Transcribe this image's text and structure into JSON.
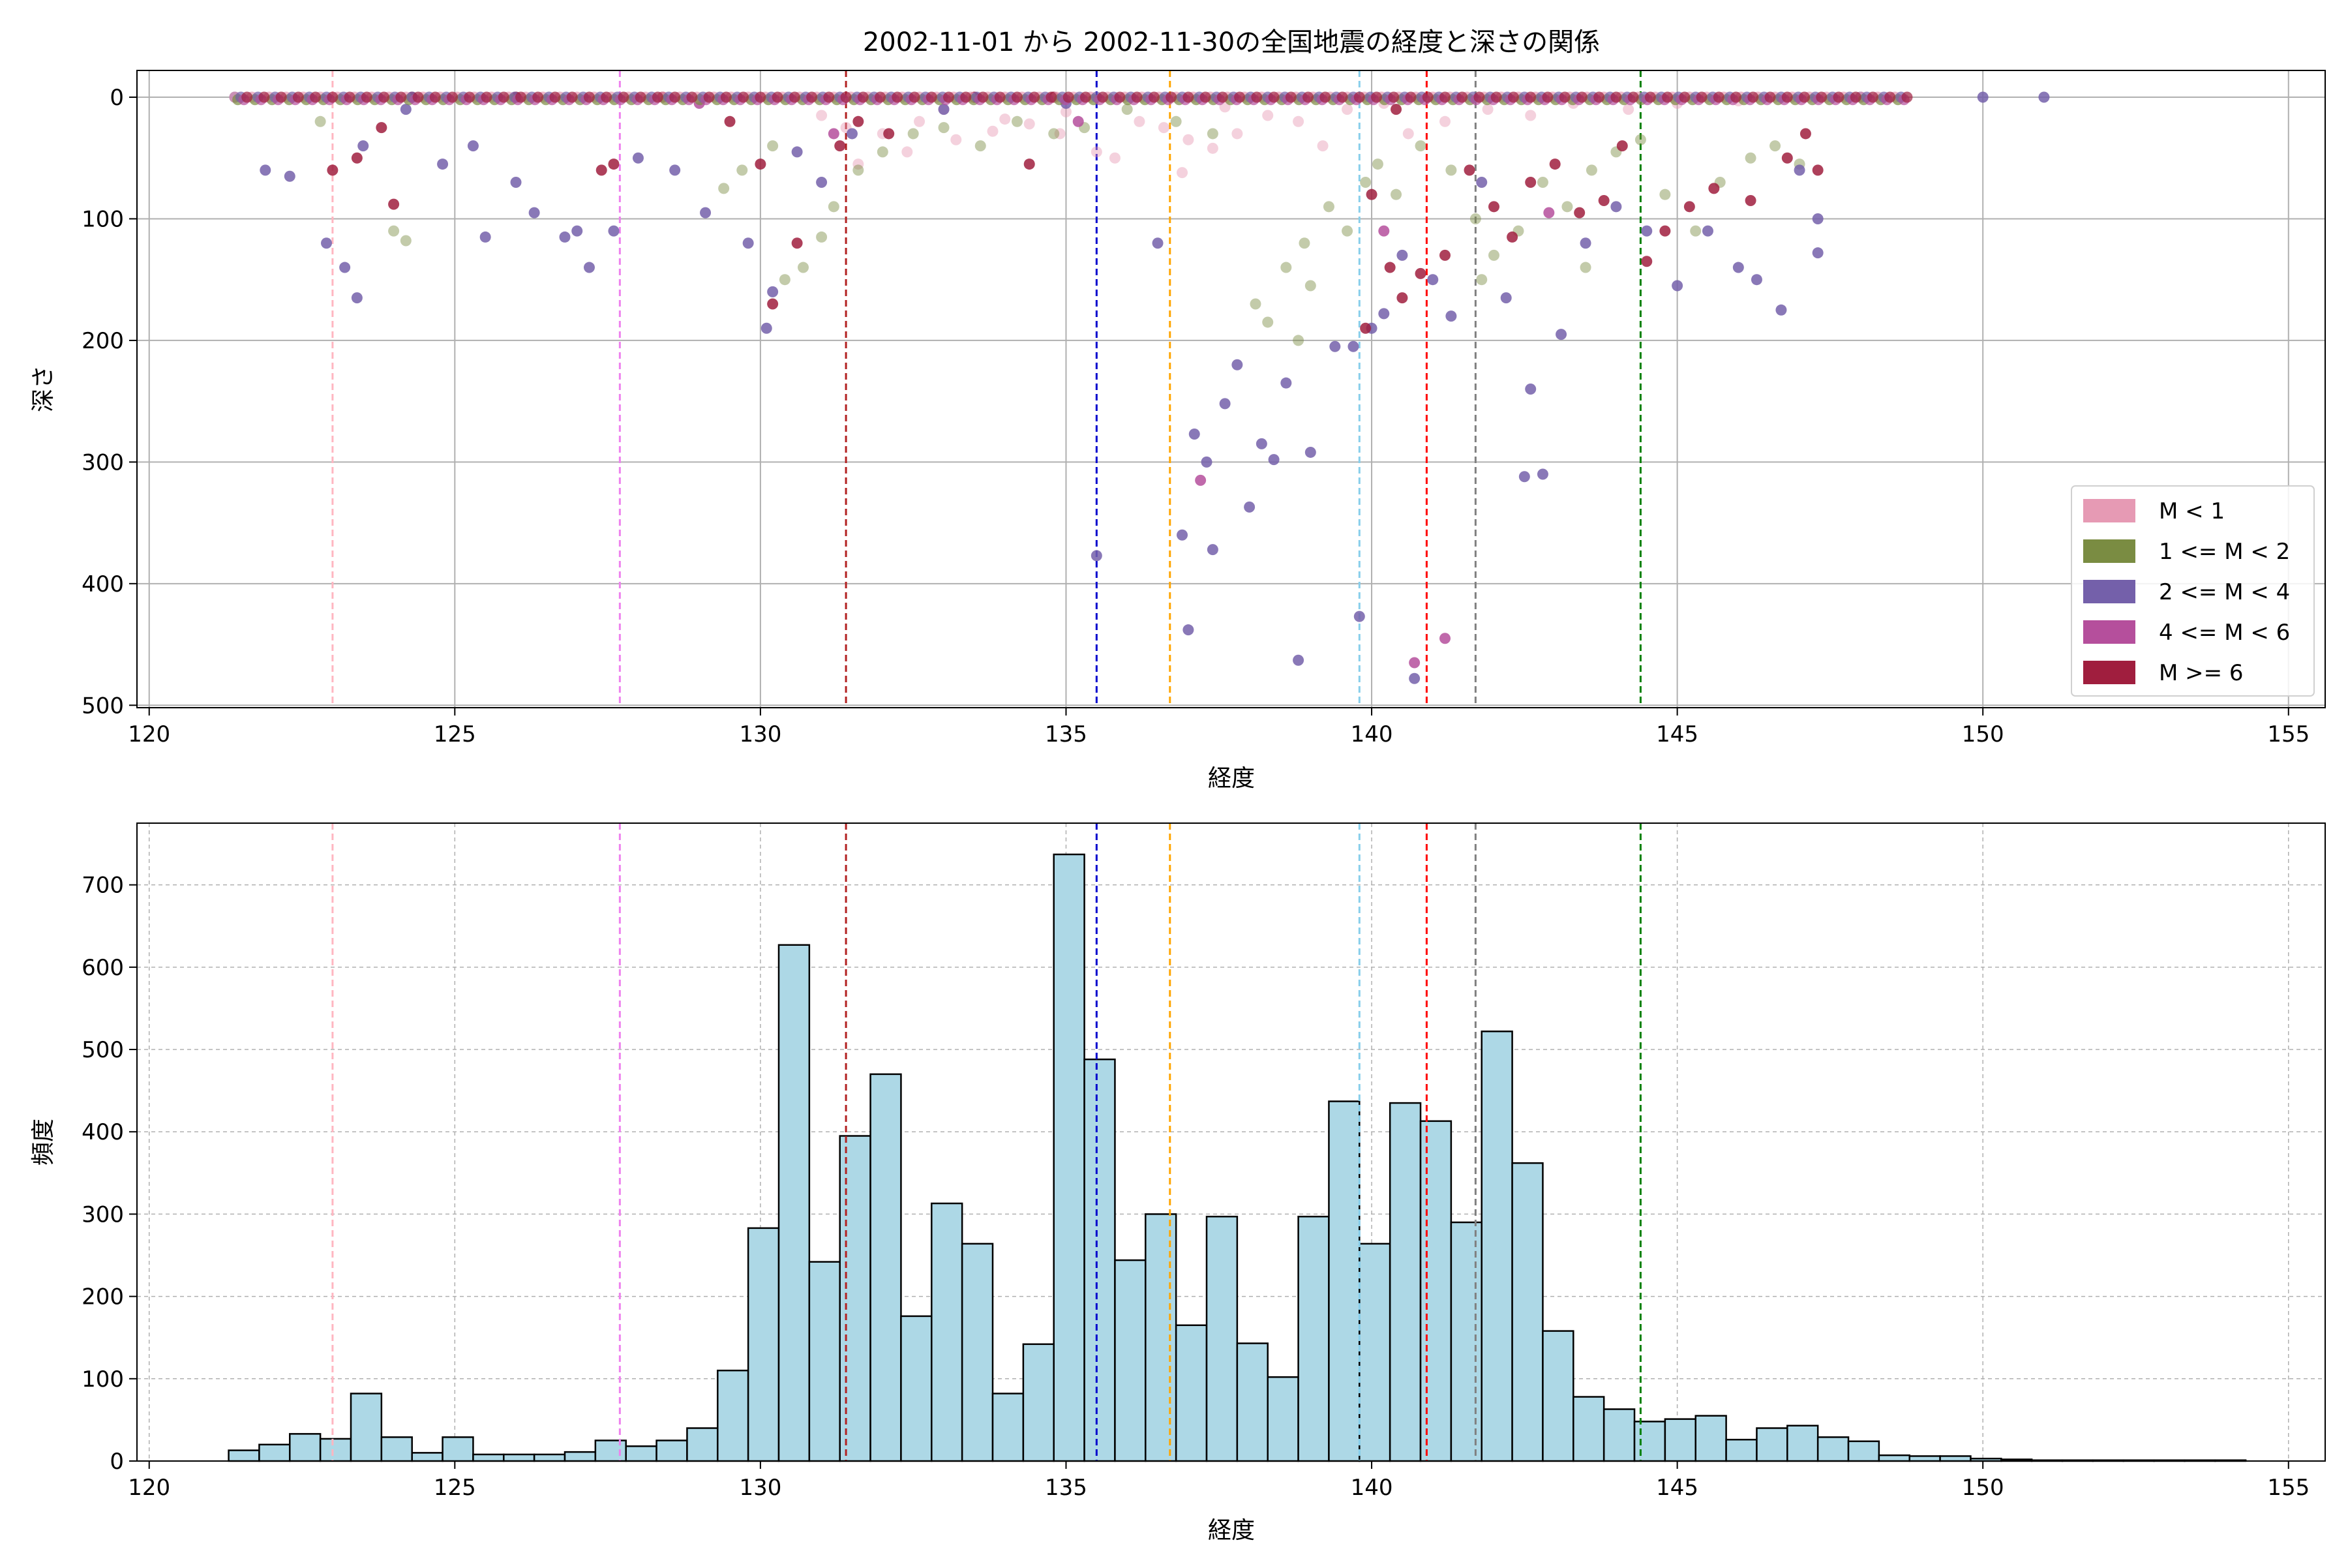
{
  "title": "2002-11-01 から 2002-11-30の全国地震の経度と深さの関係",
  "chart_data": [
    {
      "type": "scatter",
      "xlabel": "経度",
      "ylabel": "深さ",
      "xlim": [
        119.8,
        155.6
      ],
      "ylim": [
        502,
        -22
      ],
      "y_inverted": true,
      "xticks": [
        120,
        125,
        130,
        135,
        140,
        145,
        150,
        155
      ],
      "yticks": [
        0,
        100,
        200,
        300,
        400,
        500
      ],
      "grid": true,
      "legend_position": "lower-right",
      "series": [
        {
          "name": "M < 1",
          "color": "#e69ab4",
          "points": [
            [
              131.4,
              25
            ],
            [
              132.0,
              30
            ],
            [
              132.6,
              20
            ],
            [
              133.2,
              35
            ],
            [
              133.8,
              28
            ],
            [
              134.4,
              22
            ],
            [
              134.9,
              30
            ],
            [
              135.5,
              45
            ],
            [
              135.8,
              50
            ],
            [
              136.2,
              20
            ],
            [
              136.6,
              25
            ],
            [
              137.0,
              35
            ],
            [
              137.4,
              42
            ],
            [
              137.8,
              30
            ],
            [
              138.3,
              15
            ],
            [
              138.8,
              20
            ],
            [
              139.2,
              40
            ],
            [
              139.6,
              10
            ],
            [
              140.2,
              5
            ],
            [
              140.6,
              30
            ],
            [
              141.2,
              20
            ],
            [
              141.9,
              10
            ],
            [
              142.6,
              15
            ],
            [
              143.3,
              5
            ],
            [
              144.2,
              10
            ],
            [
              145.0,
              5
            ],
            [
              146.0,
              3
            ],
            [
              131.0,
              15
            ],
            [
              133.0,
              10
            ],
            [
              135.0,
              12
            ],
            [
              136.9,
              62
            ],
            [
              131.6,
              55
            ],
            [
              132.4,
              45
            ],
            [
              134.0,
              18
            ],
            [
              137.6,
              8
            ]
          ]
        },
        {
          "name": "1 <= M < 2",
          "color": "#7a8c42",
          "points": [
            [
              122.8,
              20
            ],
            [
              124.0,
              110
            ],
            [
              124.2,
              118
            ],
            [
              129.4,
              75
            ],
            [
              129.7,
              60
            ],
            [
              130.2,
              40
            ],
            [
              130.4,
              150
            ],
            [
              130.7,
              140
            ],
            [
              131.0,
              115
            ],
            [
              131.2,
              90
            ],
            [
              131.6,
              60
            ],
            [
              132.0,
              45
            ],
            [
              132.5,
              30
            ],
            [
              133.0,
              25
            ],
            [
              133.6,
              40
            ],
            [
              134.2,
              20
            ],
            [
              134.8,
              30
            ],
            [
              135.3,
              25
            ],
            [
              136.0,
              10
            ],
            [
              136.8,
              20
            ],
            [
              137.4,
              30
            ],
            [
              138.1,
              170
            ],
            [
              138.3,
              185
            ],
            [
              138.6,
              140
            ],
            [
              138.9,
              120
            ],
            [
              139.3,
              90
            ],
            [
              139.6,
              110
            ],
            [
              139.9,
              70
            ],
            [
              140.1,
              55
            ],
            [
              140.4,
              80
            ],
            [
              140.8,
              40
            ],
            [
              141.3,
              60
            ],
            [
              141.7,
              100
            ],
            [
              142.0,
              130
            ],
            [
              142.4,
              110
            ],
            [
              142.8,
              70
            ],
            [
              143.2,
              90
            ],
            [
              143.6,
              60
            ],
            [
              144.0,
              45
            ],
            [
              144.4,
              35
            ],
            [
              144.8,
              80
            ],
            [
              145.3,
              110
            ],
            [
              145.7,
              70
            ],
            [
              146.2,
              50
            ],
            [
              146.6,
              40
            ],
            [
              147.0,
              55
            ],
            [
              141.8,
              150
            ],
            [
              143.5,
              140
            ],
            [
              139.0,
              155
            ],
            [
              138.8,
              200
            ]
          ]
        },
        {
          "name": "2 <= M < 4",
          "color": "#7460aa",
          "points": [
            [
              121.4,
              0
            ],
            [
              121.9,
              60
            ],
            [
              122.3,
              65
            ],
            [
              122.9,
              120
            ],
            [
              123.2,
              140
            ],
            [
              123.4,
              165
            ],
            [
              123.5,
              40
            ],
            [
              124.2,
              10
            ],
            [
              124.8,
              55
            ],
            [
              125.3,
              40
            ],
            [
              125.5,
              115
            ],
            [
              126.0,
              70
            ],
            [
              126.3,
              95
            ],
            [
              126.8,
              115
            ],
            [
              127.0,
              110
            ],
            [
              127.2,
              140
            ],
            [
              127.6,
              110
            ],
            [
              128.0,
              50
            ],
            [
              128.6,
              60
            ],
            [
              129.1,
              95
            ],
            [
              129.8,
              120
            ],
            [
              130.1,
              190
            ],
            [
              130.2,
              160
            ],
            [
              130.6,
              45
            ],
            [
              131.0,
              70
            ],
            [
              131.5,
              30
            ],
            [
              133.0,
              10
            ],
            [
              135.0,
              5
            ],
            [
              135.5,
              377
            ],
            [
              136.5,
              120
            ],
            [
              136.9,
              360
            ],
            [
              137.0,
              438
            ],
            [
              137.1,
              277
            ],
            [
              137.3,
              300
            ],
            [
              137.4,
              372
            ],
            [
              137.6,
              252
            ],
            [
              137.8,
              220
            ],
            [
              138.0,
              337
            ],
            [
              138.2,
              285
            ],
            [
              138.4,
              298
            ],
            [
              138.6,
              235
            ],
            [
              138.8,
              463
            ],
            [
              139.0,
              292
            ],
            [
              139.4,
              205
            ],
            [
              139.7,
              205
            ],
            [
              139.8,
              427
            ],
            [
              140.0,
              190
            ],
            [
              140.2,
              178
            ],
            [
              140.5,
              130
            ],
            [
              140.7,
              478
            ],
            [
              141.0,
              150
            ],
            [
              141.3,
              180
            ],
            [
              141.8,
              70
            ],
            [
              142.2,
              165
            ],
            [
              142.5,
              312
            ],
            [
              142.6,
              240
            ],
            [
              142.8,
              310
            ],
            [
              143.1,
              195
            ],
            [
              143.5,
              120
            ],
            [
              144.0,
              90
            ],
            [
              144.5,
              110
            ],
            [
              145.0,
              155
            ],
            [
              145.5,
              110
            ],
            [
              146.0,
              140
            ],
            [
              146.3,
              150
            ],
            [
              146.7,
              175
            ],
            [
              147.0,
              60
            ],
            [
              147.3,
              100
            ],
            [
              147.3,
              128
            ],
            [
              148.0,
              0
            ],
            [
              150.0,
              0
            ],
            [
              151.0,
              0
            ]
          ]
        },
        {
          "name": "4 <= M < 6",
          "color": "#b54f9c",
          "points": [
            [
              137.2,
              315
            ],
            [
              140.7,
              465
            ],
            [
              141.2,
              445
            ],
            [
              140.2,
              110
            ],
            [
              142.9,
              95
            ],
            [
              131.2,
              30
            ],
            [
              135.2,
              20
            ],
            [
              129.0,
              5
            ]
          ]
        },
        {
          "name": "M >= 6",
          "color": "#a01e3e",
          "points": [
            [
              123.0,
              60
            ],
            [
              123.4,
              50
            ],
            [
              123.8,
              25
            ],
            [
              124.0,
              88
            ],
            [
              124.3,
              0
            ],
            [
              127.4,
              60
            ],
            [
              127.6,
              55
            ],
            [
              128.4,
              0
            ],
            [
              129.5,
              20
            ],
            [
              130.0,
              55
            ],
            [
              130.2,
              170
            ],
            [
              130.6,
              120
            ],
            [
              131.3,
              40
            ],
            [
              131.6,
              20
            ],
            [
              132.1,
              30
            ],
            [
              134.4,
              55
            ],
            [
              134.8,
              0
            ],
            [
              139.9,
              190
            ],
            [
              140.0,
              80
            ],
            [
              140.3,
              140
            ],
            [
              140.5,
              165
            ],
            [
              140.8,
              145
            ],
            [
              141.2,
              130
            ],
            [
              141.6,
              60
            ],
            [
              142.0,
              90
            ],
            [
              142.3,
              115
            ],
            [
              142.6,
              70
            ],
            [
              143.0,
              55
            ],
            [
              143.4,
              95
            ],
            [
              143.8,
              85
            ],
            [
              144.1,
              40
            ],
            [
              144.5,
              135
            ],
            [
              144.8,
              110
            ],
            [
              145.2,
              90
            ],
            [
              145.6,
              75
            ],
            [
              146.2,
              85
            ],
            [
              146.8,
              50
            ],
            [
              147.1,
              30
            ],
            [
              147.3,
              60
            ],
            [
              126.0,
              0
            ],
            [
              133.5,
              0
            ],
            [
              140.4,
              10
            ]
          ]
        }
      ],
      "vlines": [
        {
          "x": 123.0,
          "color": "#ffb6c1"
        },
        {
          "x": 127.7,
          "color": "#ee82ee"
        },
        {
          "x": 131.4,
          "color": "#b22222"
        },
        {
          "x": 135.5,
          "color": "#0000cd"
        },
        {
          "x": 136.7,
          "color": "#ffa500"
        },
        {
          "x": 139.8,
          "color": "#87ceeb"
        },
        {
          "x": 140.9,
          "color": "#ff0000"
        },
        {
          "x": 141.7,
          "color": "#808080"
        },
        {
          "x": 144.4,
          "color": "#008000"
        }
      ]
    },
    {
      "type": "bar",
      "xlabel": "経度",
      "ylabel": "頻度",
      "xlim": [
        119.8,
        155.6
      ],
      "ylim": [
        0,
        775
      ],
      "xticks": [
        120,
        125,
        130,
        135,
        140,
        145,
        150,
        155
      ],
      "yticks": [
        0,
        100,
        200,
        300,
        400,
        500,
        600,
        700
      ],
      "grid": true,
      "bar_color": "#add8e6",
      "bin_width": 0.5,
      "bin_start": 121.3,
      "values": [
        13,
        20,
        33,
        27,
        82,
        29,
        10,
        29,
        8,
        8,
        8,
        11,
        25,
        18,
        25,
        40,
        110,
        283,
        627,
        242,
        395,
        470,
        176,
        313,
        264,
        82,
        142,
        737,
        488,
        244,
        300,
        165,
        297,
        143,
        102,
        297,
        437,
        264,
        435,
        413,
        290,
        522,
        362,
        158,
        78,
        63,
        48,
        51,
        55,
        26,
        40,
        43,
        29,
        24,
        7,
        6,
        6,
        3,
        2,
        1,
        1,
        1,
        1,
        1,
        1,
        1
      ],
      "vlines": [
        {
          "x": 123.0,
          "color": "#ffb6c1"
        },
        {
          "x": 127.7,
          "color": "#ee82ee"
        },
        {
          "x": 131.4,
          "color": "#b22222"
        },
        {
          "x": 135.5,
          "color": "#0000cd"
        },
        {
          "x": 136.7,
          "color": "#ffa500"
        },
        {
          "x": 139.8,
          "color": "#87ceeb"
        },
        {
          "x": 140.9,
          "color": "#ff0000"
        },
        {
          "x": 141.7,
          "color": "#808080"
        },
        {
          "x": 144.4,
          "color": "#008000"
        }
      ]
    }
  ]
}
